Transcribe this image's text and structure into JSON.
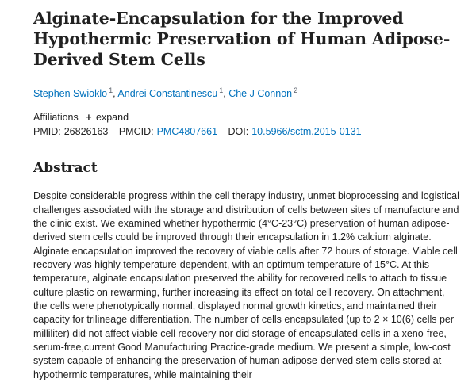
{
  "article": {
    "title": "Alginate-Encapsulation for the Improved Hypothermic Preservation of Human Adipose-Derived Stem Cells",
    "authors": [
      {
        "name": "Stephen Swioklo",
        "affiliation": "1"
      },
      {
        "name": "Andrei Constantinescu",
        "affiliation": "1"
      },
      {
        "name": "Che J Connon",
        "affiliation": "2"
      }
    ],
    "author_separator": ",",
    "affiliations_label": "Affiliations",
    "expand_symbol": "+",
    "expand_label": "expand",
    "identifiers": {
      "pmid_label": "PMID:",
      "pmid": "26826163",
      "pmcid_label": "PMCID:",
      "pmcid": "PMC4807661",
      "doi_label": "DOI:",
      "doi": "10.5966/sctm.2015-0131"
    },
    "abstract_heading": "Abstract",
    "abstract_text": "Despite considerable progress within the cell therapy industry, unmet bioprocessing and logistical challenges associated with the storage and distribution of cells between sites of manufacture and the clinic exist. We examined whether hypothermic (4°C-23°C) preservation of human adipose-derived stem cells could be improved through their encapsulation in 1.2% calcium alginate. Alginate encapsulation improved the recovery of viable cells after 72 hours of storage. Viable cell recovery was highly temperature-dependent, with an optimum temperature of 15°C. At this temperature, alginate encapsulation preserved the ability for recovered cells to attach to tissue culture plastic on rewarming, further increasing its effect on total cell recovery. On attachment, the cells were phenotypically normal, displayed normal growth kinetics, and maintained their capacity for trilineage differentiation. The number of cells encapsulated (up to 2 × 10(6) cells per milliliter) did not affect viable cell recovery nor did storage of encapsulated cells in a xeno-free, serum-free,current Good Manufacturing Practice-grade medium. We present a simple, low-cost system capable of enhancing the preservation of human adipose-derived stem cells stored at hypothermic temperatures, while maintaining their"
  }
}
